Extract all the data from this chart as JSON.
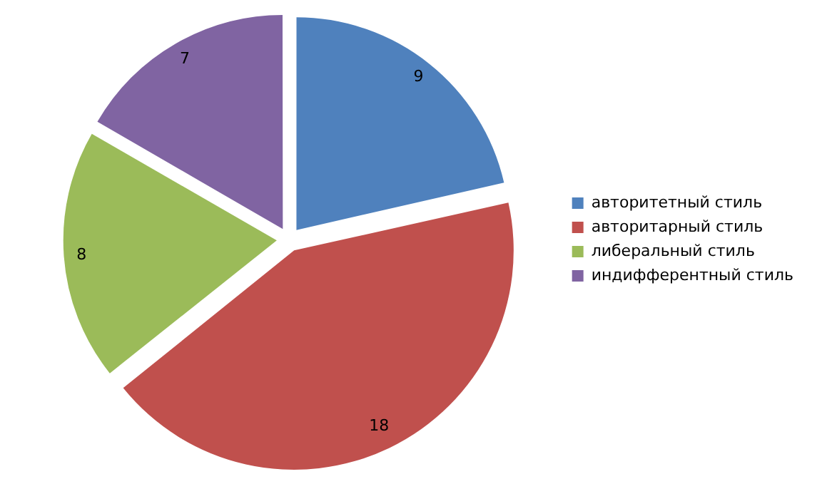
{
  "chart_data": {
    "type": "pie",
    "categories": [
      "авторитетный стиль",
      "авторитарный стиль",
      "либеральный стиль",
      "индифферентный стиль"
    ],
    "values": [
      9,
      18,
      8,
      7
    ],
    "colors": [
      "#4f81bd",
      "#c0504d",
      "#9bbb59",
      "#8064a2"
    ],
    "data_labels": true,
    "legend": "right"
  }
}
